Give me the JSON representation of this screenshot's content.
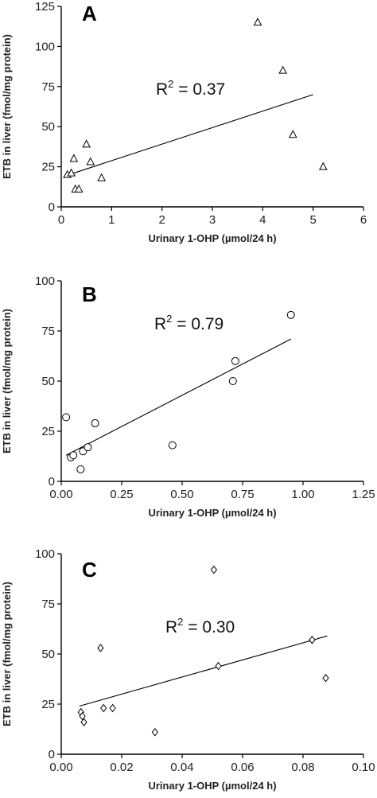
{
  "chart_data": [
    {
      "type": "scatter",
      "panel": "A",
      "xlabel": "Urinary 1-OHP (µmol/24 h)",
      "ylabel": "ETB in liver (fmol/mg protein)",
      "xlim": [
        0,
        6
      ],
      "ylim": [
        0,
        125
      ],
      "xticks": [
        0,
        1,
        2,
        3,
        4,
        5,
        6
      ],
      "yticks": [
        0,
        25,
        50,
        75,
        100,
        125
      ],
      "xtick_labels": [
        "0",
        "1",
        "2",
        "3",
        "4",
        "5",
        "6"
      ],
      "ytick_labels": [
        "0",
        "25",
        "50",
        "75",
        "100",
        "125"
      ],
      "marker": "triangle",
      "r2_base": "R",
      "r2_exp": "2",
      "r2_value": " = 0.37",
      "points": [
        {
          "x": 0.12,
          "y": 20
        },
        {
          "x": 0.2,
          "y": 21
        },
        {
          "x": 0.25,
          "y": 30
        },
        {
          "x": 0.28,
          "y": 11
        },
        {
          "x": 0.35,
          "y": 11
        },
        {
          "x": 0.5,
          "y": 39
        },
        {
          "x": 0.58,
          "y": 28
        },
        {
          "x": 0.8,
          "y": 18
        },
        {
          "x": 3.9,
          "y": 115
        },
        {
          "x": 4.4,
          "y": 85
        },
        {
          "x": 4.6,
          "y": 45
        },
        {
          "x": 5.2,
          "y": 25
        }
      ],
      "fit_line": [
        {
          "x": 0.05,
          "y": 19
        },
        {
          "x": 5.0,
          "y": 70
        }
      ]
    },
    {
      "type": "scatter",
      "panel": "B",
      "xlabel": "Urinary 1-OHP (µmol/24 h)",
      "ylabel": "ETB in liver (fmol/mg protein)",
      "xlim": [
        0,
        1.25
      ],
      "ylim": [
        0,
        100
      ],
      "xticks": [
        0,
        0.25,
        0.5,
        0.75,
        1.0,
        1.25
      ],
      "yticks": [
        0,
        25,
        50,
        75,
        100
      ],
      "xtick_labels": [
        "0.00",
        "0.25",
        "0.50",
        "0.75",
        "1.00",
        "1.25"
      ],
      "ytick_labels": [
        "0",
        "25",
        "50",
        "75",
        "100"
      ],
      "marker": "circle",
      "r2_base": "R",
      "r2_exp": "2",
      "r2_value": " = 0.79",
      "points": [
        {
          "x": 0.02,
          "y": 32
        },
        {
          "x": 0.04,
          "y": 12
        },
        {
          "x": 0.05,
          "y": 13
        },
        {
          "x": 0.08,
          "y": 6
        },
        {
          "x": 0.09,
          "y": 15
        },
        {
          "x": 0.11,
          "y": 17
        },
        {
          "x": 0.14,
          "y": 29
        },
        {
          "x": 0.46,
          "y": 18
        },
        {
          "x": 0.71,
          "y": 50
        },
        {
          "x": 0.72,
          "y": 60
        },
        {
          "x": 0.95,
          "y": 83
        }
      ],
      "fit_line": [
        {
          "x": 0.02,
          "y": 13
        },
        {
          "x": 0.95,
          "y": 71
        }
      ]
    },
    {
      "type": "scatter",
      "panel": "C",
      "xlabel": "Urinary 1-OHP (µmol/24 h)",
      "ylabel": "ETB in liver (fmol/mg protein)",
      "xlim": [
        0,
        0.1
      ],
      "ylim": [
        0,
        100
      ],
      "xticks": [
        0,
        0.02,
        0.04,
        0.06,
        0.08,
        0.1
      ],
      "yticks": [
        0,
        25,
        50,
        75,
        100
      ],
      "xtick_labels": [
        "0.00",
        "0.02",
        "0.04",
        "0.06",
        "0.08",
        "0.10"
      ],
      "ytick_labels": [
        "0",
        "25",
        "50",
        "75",
        "100"
      ],
      "marker": "diamond",
      "r2_base": "R",
      "r2_exp": "2",
      "r2_value": " = 0.30",
      "points": [
        {
          "x": 0.0065,
          "y": 21
        },
        {
          "x": 0.007,
          "y": 19
        },
        {
          "x": 0.0075,
          "y": 16
        },
        {
          "x": 0.013,
          "y": 53
        },
        {
          "x": 0.014,
          "y": 23
        },
        {
          "x": 0.017,
          "y": 23
        },
        {
          "x": 0.031,
          "y": 11
        },
        {
          "x": 0.0505,
          "y": 92
        },
        {
          "x": 0.052,
          "y": 44
        },
        {
          "x": 0.083,
          "y": 57
        },
        {
          "x": 0.0875,
          "y": 38
        }
      ],
      "fit_line": [
        {
          "x": 0.006,
          "y": 24
        },
        {
          "x": 0.088,
          "y": 59
        }
      ]
    }
  ]
}
